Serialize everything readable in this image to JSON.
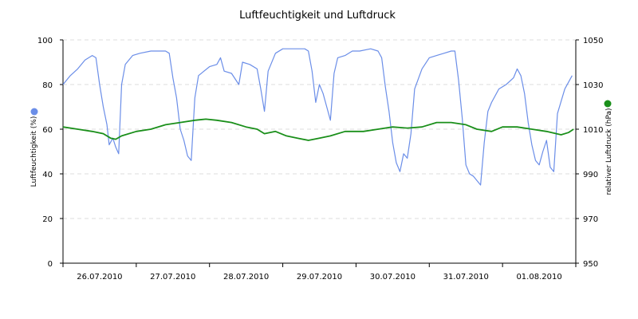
{
  "chart_data": {
    "type": "line",
    "title": "Luftfeuchtigkeit und Luftdruck",
    "y_left": {
      "label": "Luftfeuchtigkeit (%)",
      "range": [
        0,
        100
      ],
      "ticks": [
        "0",
        "20",
        "40",
        "60",
        "80",
        "100"
      ],
      "marker_color": "#6b8ee8"
    },
    "y_right": {
      "label": "relativer Luftdruck (hPa)",
      "range": [
        950,
        1050
      ],
      "ticks": [
        "950",
        "970",
        "990",
        "1010",
        "1030",
        "1050"
      ],
      "marker_color": "#1a8f1a"
    },
    "x": {
      "range": [
        0,
        7
      ],
      "unit": "days from 26.07.2010 00:00",
      "tick_labels": [
        "26.07.2010",
        "27.07.2010",
        "28.07.2010",
        "29.07.2010",
        "30.07.2010",
        "31.07.2010",
        "01.08.2010"
      ],
      "gridlines": true
    },
    "series": [
      {
        "axis": "left",
        "color": "#6b8ee8",
        "points": [
          [
            0.0,
            80
          ],
          [
            0.1,
            84
          ],
          [
            0.2,
            87
          ],
          [
            0.3,
            91
          ],
          [
            0.4,
            93
          ],
          [
            0.45,
            92
          ],
          [
            0.5,
            80
          ],
          [
            0.55,
            70
          ],
          [
            0.6,
            62
          ],
          [
            0.63,
            53
          ],
          [
            0.68,
            56
          ],
          [
            0.72,
            52
          ],
          [
            0.76,
            49
          ],
          [
            0.8,
            80
          ],
          [
            0.85,
            89
          ],
          [
            0.95,
            93
          ],
          [
            1.05,
            94
          ],
          [
            1.2,
            95
          ],
          [
            1.4,
            95
          ],
          [
            1.45,
            94
          ],
          [
            1.5,
            83
          ],
          [
            1.55,
            74
          ],
          [
            1.6,
            60
          ],
          [
            1.65,
            55
          ],
          [
            1.7,
            48
          ],
          [
            1.75,
            46
          ],
          [
            1.8,
            74
          ],
          [
            1.85,
            84
          ],
          [
            2.0,
            88
          ],
          [
            2.1,
            89
          ],
          [
            2.15,
            92
          ],
          [
            2.2,
            86
          ],
          [
            2.3,
            85
          ],
          [
            2.4,
            80
          ],
          [
            2.45,
            90
          ],
          [
            2.55,
            89
          ],
          [
            2.65,
            87
          ],
          [
            2.7,
            78
          ],
          [
            2.75,
            68
          ],
          [
            2.8,
            86
          ],
          [
            2.9,
            94
          ],
          [
            3.0,
            96
          ],
          [
            3.1,
            96
          ],
          [
            3.2,
            96
          ],
          [
            3.3,
            96
          ],
          [
            3.35,
            95
          ],
          [
            3.4,
            86
          ],
          [
            3.45,
            72
          ],
          [
            3.5,
            80
          ],
          [
            3.55,
            76
          ],
          [
            3.6,
            70
          ],
          [
            3.65,
            64
          ],
          [
            3.7,
            85
          ],
          [
            3.75,
            92
          ],
          [
            3.85,
            93
          ],
          [
            3.95,
            95
          ],
          [
            4.05,
            95
          ],
          [
            4.2,
            96
          ],
          [
            4.3,
            95
          ],
          [
            4.35,
            92
          ],
          [
            4.4,
            79
          ],
          [
            4.45,
            68
          ],
          [
            4.5,
            54
          ],
          [
            4.55,
            45
          ],
          [
            4.6,
            41
          ],
          [
            4.65,
            49
          ],
          [
            4.7,
            47
          ],
          [
            4.75,
            58
          ],
          [
            4.8,
            78
          ],
          [
            4.9,
            87
          ],
          [
            5.0,
            92
          ],
          [
            5.1,
            93
          ],
          [
            5.2,
            94
          ],
          [
            5.3,
            95
          ],
          [
            5.35,
            95
          ],
          [
            5.4,
            82
          ],
          [
            5.45,
            65
          ],
          [
            5.5,
            44
          ],
          [
            5.55,
            40
          ],
          [
            5.6,
            39
          ],
          [
            5.65,
            37
          ],
          [
            5.7,
            35
          ],
          [
            5.75,
            54
          ],
          [
            5.8,
            68
          ],
          [
            5.85,
            72
          ],
          [
            5.95,
            78
          ],
          [
            6.05,
            80
          ],
          [
            6.15,
            83
          ],
          [
            6.2,
            87
          ],
          [
            6.25,
            84
          ],
          [
            6.3,
            76
          ],
          [
            6.35,
            63
          ],
          [
            6.4,
            53
          ],
          [
            6.45,
            46
          ],
          [
            6.5,
            44
          ],
          [
            6.55,
            50
          ],
          [
            6.6,
            55
          ],
          [
            6.65,
            43
          ],
          [
            6.7,
            41
          ],
          [
            6.75,
            67
          ],
          [
            6.85,
            78
          ],
          [
            6.95,
            84
          ]
        ]
      },
      {
        "axis": "right",
        "color": "#1a8f1a",
        "points": [
          [
            0.0,
            1011
          ],
          [
            0.2,
            1010
          ],
          [
            0.4,
            1009
          ],
          [
            0.55,
            1008
          ],
          [
            0.65,
            1006
          ],
          [
            0.72,
            1005.5
          ],
          [
            0.8,
            1007
          ],
          [
            1.0,
            1009
          ],
          [
            1.2,
            1010
          ],
          [
            1.4,
            1012
          ],
          [
            1.6,
            1013
          ],
          [
            1.8,
            1014
          ],
          [
            1.95,
            1014.5
          ],
          [
            2.1,
            1014
          ],
          [
            2.3,
            1013
          ],
          [
            2.5,
            1011
          ],
          [
            2.65,
            1010
          ],
          [
            2.75,
            1008
          ],
          [
            2.9,
            1009
          ],
          [
            3.05,
            1007
          ],
          [
            3.2,
            1006
          ],
          [
            3.35,
            1005
          ],
          [
            3.5,
            1006
          ],
          [
            3.65,
            1007
          ],
          [
            3.85,
            1009
          ],
          [
            4.1,
            1009
          ],
          [
            4.3,
            1010
          ],
          [
            4.5,
            1011
          ],
          [
            4.7,
            1010.5
          ],
          [
            4.9,
            1011
          ],
          [
            5.1,
            1013
          ],
          [
            5.3,
            1013
          ],
          [
            5.5,
            1012
          ],
          [
            5.65,
            1010
          ],
          [
            5.85,
            1009
          ],
          [
            6.0,
            1011
          ],
          [
            6.2,
            1011
          ],
          [
            6.4,
            1010
          ],
          [
            6.6,
            1009
          ],
          [
            6.8,
            1007.5
          ],
          [
            6.9,
            1008.5
          ],
          [
            6.97,
            1010
          ]
        ]
      }
    ]
  }
}
